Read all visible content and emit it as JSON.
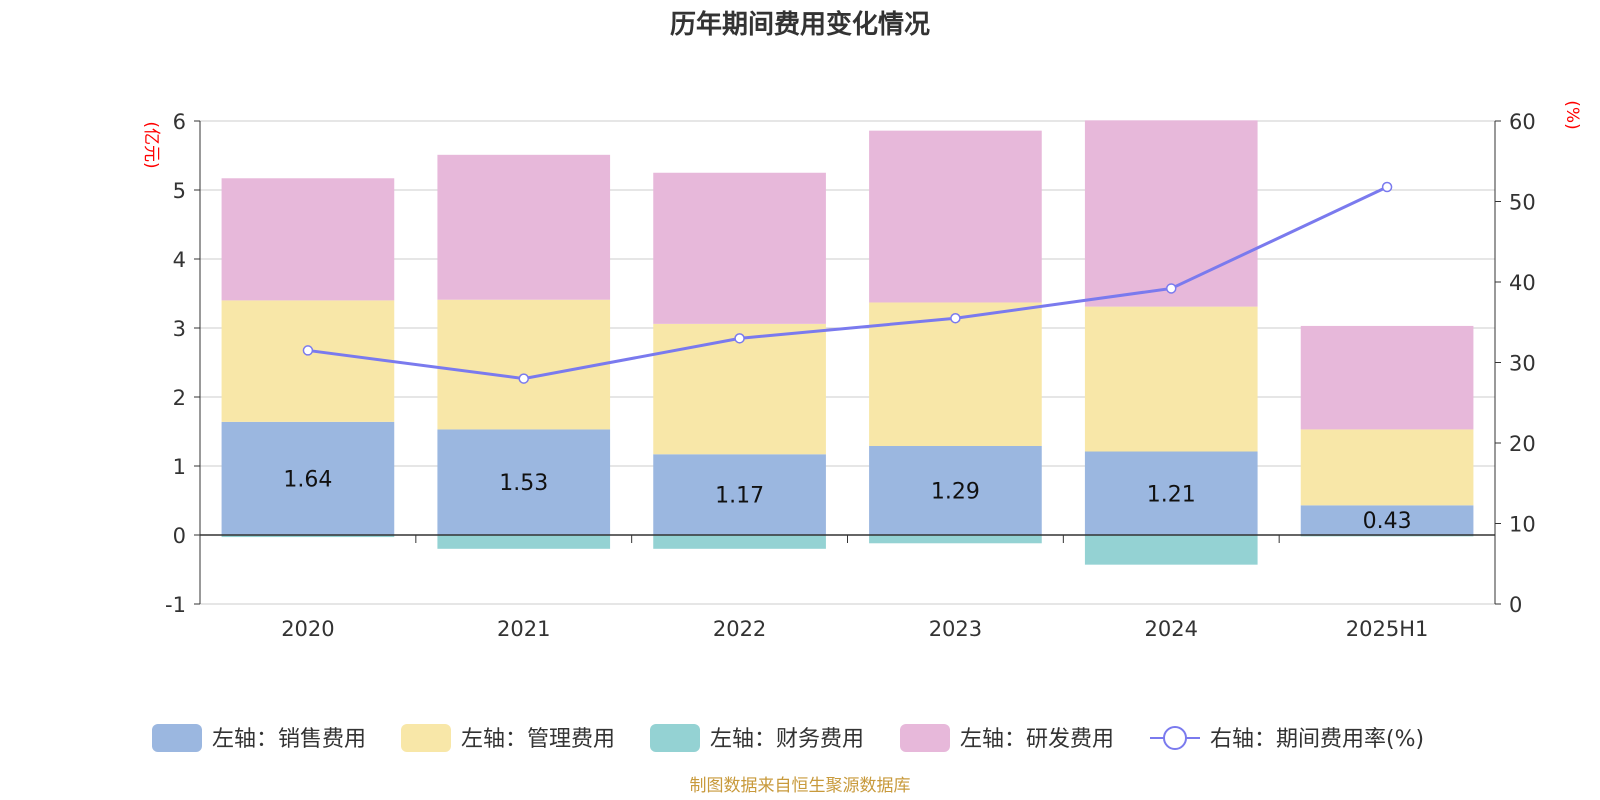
{
  "chart_data": {
    "type": "bar",
    "stacked": true,
    "title": "历年期间费用变化情况",
    "categories": [
      "2020",
      "2021",
      "2022",
      "2023",
      "2024",
      "2025H1"
    ],
    "left_axis": {
      "unit": "(亿元)",
      "ylim": [
        -1,
        6
      ],
      "ticks": [
        "-1",
        "0",
        "1",
        "2",
        "3",
        "4",
        "5",
        "6"
      ]
    },
    "right_axis": {
      "unit": "(%)",
      "ylim": [
        0,
        60
      ],
      "ticks": [
        "0",
        "10",
        "20",
        "30",
        "40",
        "50",
        "60"
      ]
    },
    "series": [
      {
        "name": "左轴：销售费用",
        "color": "#9bb7e0",
        "axis": "left",
        "values": [
          1.64,
          1.53,
          1.17,
          1.29,
          1.21,
          0.43
        ],
        "labels": [
          "1.64",
          "1.53",
          "1.17",
          "1.29",
          "1.21",
          "0.43"
        ]
      },
      {
        "name": "左轴：管理费用",
        "color": "#f8e7a8",
        "axis": "left",
        "values": [
          1.76,
          1.88,
          1.89,
          2.08,
          2.1,
          1.1
        ]
      },
      {
        "name": "左轴：财务费用",
        "color": "#94d2d3",
        "axis": "left",
        "values": [
          -0.03,
          -0.2,
          -0.2,
          -0.12,
          -0.43,
          -0.02
        ]
      },
      {
        "name": "左轴：研发费用",
        "color": "#e7b8da",
        "axis": "left",
        "values": [
          1.77,
          2.1,
          2.19,
          2.49,
          2.7,
          1.5
        ]
      },
      {
        "name": "右轴：期间费用率(%)",
        "color": "#7a7aee",
        "axis": "right",
        "type": "line",
        "values": [
          31.5,
          28.0,
          33.0,
          35.5,
          39.2,
          51.8
        ]
      }
    ],
    "grid": true,
    "legend_position": "bottom"
  },
  "source_note": "制图数据来自恒生聚源数据库"
}
